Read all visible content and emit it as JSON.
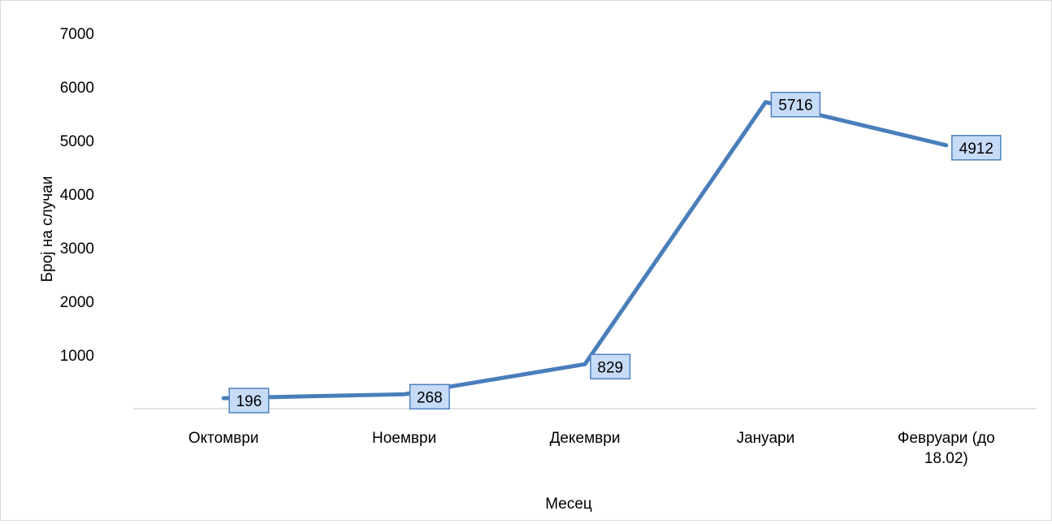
{
  "colors": {
    "line": "#4a7ebb",
    "label_fill": "#c6dbf7",
    "label_border": "#4f81bd",
    "axis": "#d9d9d9"
  },
  "chart_data": {
    "type": "line",
    "title": "",
    "xlabel": "Месец",
    "ylabel": "Број на случаи",
    "ylim": [
      0,
      7000
    ],
    "yticks": [
      1000,
      2000,
      3000,
      4000,
      5000,
      6000,
      7000
    ],
    "grid": false,
    "categories": [
      "Октомври",
      "Ноември",
      "Декември",
      "Јануари",
      "Февруари (до 18.02)"
    ],
    "series": [
      {
        "values": [
          196,
          268,
          829,
          5716,
          4912
        ]
      }
    ],
    "data_labels": [
      "196",
      "268",
      "829",
      "5716",
      "4912"
    ]
  }
}
